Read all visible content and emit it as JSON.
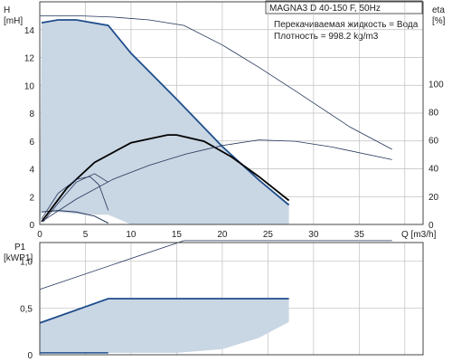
{
  "chart_data": [
    {
      "type": "line",
      "panel": "head-efficiency",
      "title": "MAGNA3 D 40-150 F, 50Hz",
      "annotations": [
        "Перекачиваемая жидкость = Вода",
        "Плотность = 998.2 kg/m3"
      ],
      "xlabel": "Q [m3/h]",
      "ylabel_left": "H\n[mH]",
      "ylabel_right": "eta\n[%]",
      "xlim": [
        0,
        42
      ],
      "ylim_left": [
        0,
        16
      ],
      "ylim_right": [
        0,
        158
      ],
      "x_ticks": [
        "0",
        "5",
        "10",
        "15",
        "20",
        "25",
        "30",
        "35"
      ],
      "y_ticks_left": [
        "0",
        "2",
        "4",
        "6",
        "8",
        "10",
        "12",
        "14"
      ],
      "y_ticks_right": [
        "0",
        "20",
        "40",
        "60",
        "80",
        "100"
      ],
      "grid": true,
      "colors": {
        "area": "#c9d6e3",
        "head_max": "#1f4e8c",
        "thin": "#22345a",
        "black": "#000000",
        "grid": "#bfbfbf"
      },
      "series": [
        {
          "role": "area-boundary",
          "x": [
            0,
            0.2,
            2,
            4,
            7.5,
            10,
            15,
            20,
            24,
            27.3,
            27.3,
            24.5,
            25.2,
            22,
            18,
            14,
            10,
            7.5,
            7.5,
            5,
            2,
            0.2,
            0
          ],
          "y": [
            0,
            14.5,
            14.7,
            14.7,
            14.3,
            12.3,
            9,
            5.6,
            3.2,
            1.4,
            0,
            0,
            0,
            0,
            0,
            0,
            0,
            0.7,
            0.7,
            0.7,
            0.9,
            0.9,
            0
          ]
        },
        {
          "role": "max-head",
          "x": [
            0.2,
            2,
            4,
            7.5,
            10,
            15,
            20,
            24,
            27.3
          ],
          "y": [
            14.5,
            14.7,
            14.7,
            14.3,
            12.3,
            9,
            5.6,
            3.2,
            1.4
          ]
        },
        {
          "role": "min-head",
          "x": [
            0.2,
            2,
            4,
            6,
            7.5
          ],
          "y": [
            0.9,
            1,
            0.9,
            0.6,
            0.1
          ]
        },
        {
          "role": "thin-head",
          "x": [
            0,
            4,
            8,
            12,
            15.8,
            20,
            24,
            28,
            31,
            34,
            38.6
          ],
          "y": [
            15,
            15,
            14.9,
            14.7,
            14.3,
            12.9,
            11.3,
            9.6,
            8.3,
            7,
            5.4
          ]
        },
        {
          "role": "eta-max",
          "axis": "right",
          "x": [
            0.2,
            3,
            6,
            10,
            14,
            15,
            18,
            21,
            24,
            27.3
          ],
          "y": [
            2,
            26,
            44,
            58,
            63.5,
            63.5,
            59,
            48,
            34,
            17
          ]
        },
        {
          "role": "eta-thin",
          "axis": "right",
          "x": [
            0.2,
            4,
            8,
            12,
            16,
            20,
            24,
            28,
            32,
            38.6
          ],
          "y": [
            2,
            18,
            32,
            42,
            50,
            56,
            60,
            59,
            55,
            46
          ]
        },
        {
          "role": "eta-small-1",
          "axis": "right",
          "x": [
            0.2,
            2,
            4,
            5.5,
            6.5,
            7.5
          ],
          "y": [
            4,
            22,
            32,
            34,
            28,
            10
          ]
        },
        {
          "role": "eta-small-2",
          "axis": "right",
          "x": [
            0.4,
            2,
            4,
            6,
            7.5
          ],
          "y": [
            2,
            15,
            30,
            36,
            30
          ]
        }
      ]
    },
    {
      "type": "line",
      "panel": "power",
      "xlabel": "",
      "ylabel": "P1\n[kWP1]",
      "xlim": [
        0,
        42
      ],
      "ylim": [
        0,
        1.2
      ],
      "y_ticks": [
        "0",
        "0,5",
        "1,0"
      ],
      "grid": true,
      "series": [
        {
          "role": "area-boundary",
          "x": [
            0,
            7.5,
            15,
            20,
            24,
            27.3,
            27.3,
            24.5,
            20,
            15,
            10,
            7.5,
            0
          ],
          "y": [
            0.02,
            0.02,
            0.02,
            0.06,
            0.18,
            0.35,
            0.6,
            0.6,
            0.6,
            0.6,
            0.6,
            0.6,
            0.35
          ]
        },
        {
          "role": "max-power",
          "x": [
            0,
            7.5,
            27.3
          ],
          "y": [
            0.34,
            0.6,
            0.6
          ]
        },
        {
          "role": "thin-power",
          "x": [
            0,
            15.8,
            38.6
          ],
          "y": [
            0.7,
            1.22,
            1.22
          ]
        },
        {
          "role": "min-power",
          "x": [
            0,
            7.5
          ],
          "y": [
            0.02,
            0.02
          ]
        }
      ]
    }
  ]
}
